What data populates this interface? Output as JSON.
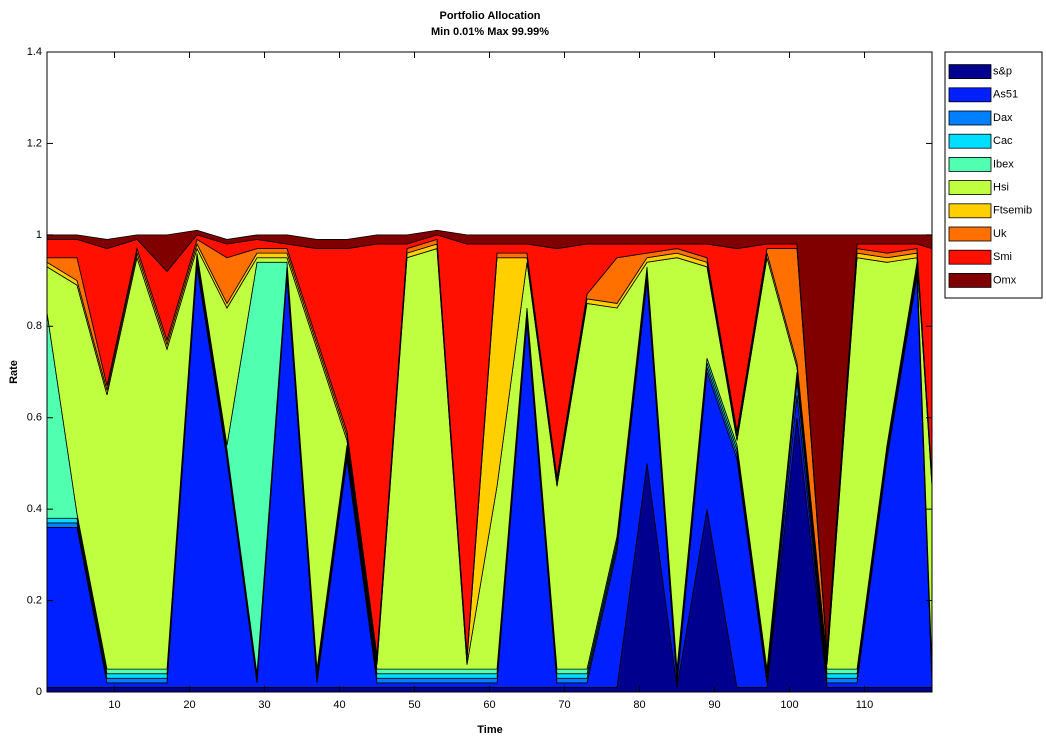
{
  "chart_data": {
    "type": "stacked_area",
    "title": "Portfolio Allocation",
    "subtitle": "Min 0.01% Max 99.99%",
    "x_label": "Time",
    "y_label": "Rate",
    "x": [
      1,
      5,
      9,
      13,
      17,
      21,
      25,
      29,
      33,
      37,
      41,
      45,
      49,
      53,
      57,
      61,
      65,
      69,
      73,
      77,
      81,
      85,
      89,
      93,
      97,
      101,
      105,
      109,
      113,
      117,
      119
    ],
    "series": [
      {
        "name": "s&p",
        "color": "#00008f",
        "values": [
          0.01,
          0.01,
          0.01,
          0.01,
          0.01,
          0.01,
          0.01,
          0.01,
          0.01,
          0.01,
          0.01,
          0.01,
          0.01,
          0.01,
          0.01,
          0.01,
          0.01,
          0.01,
          0.01,
          0.01,
          0.5,
          0.01,
          0.4,
          0.01,
          0.01,
          0.6,
          0.01,
          0.01,
          0.01,
          0.01,
          0.01
        ]
      },
      {
        "name": "As51",
        "color": "#0020ff",
        "values": [
          0.35,
          0.35,
          0.01,
          0.01,
          0.01,
          0.92,
          0.5,
          0.01,
          0.9,
          0.01,
          0.5,
          0.01,
          0.01,
          0.01,
          0.01,
          0.01,
          0.8,
          0.01,
          0.01,
          0.3,
          0.4,
          0.01,
          0.3,
          0.5,
          0.01,
          0.05,
          0.01,
          0.01,
          0.5,
          0.9,
          0.01
        ]
      },
      {
        "name": "Dax",
        "color": "#0080ff",
        "values": [
          0.01,
          0.01,
          0.01,
          0.01,
          0.01,
          0.01,
          0.01,
          0.01,
          0.01,
          0.01,
          0.01,
          0.01,
          0.01,
          0.01,
          0.01,
          0.01,
          0.01,
          0.01,
          0.01,
          0.01,
          0.01,
          0.01,
          0.01,
          0.01,
          0.01,
          0.03,
          0.01,
          0.01,
          0.01,
          0.01,
          0.01
        ]
      },
      {
        "name": "Cac",
        "color": "#00dfff",
        "values": [
          0.01,
          0.01,
          0.01,
          0.01,
          0.01,
          0.01,
          0.01,
          0.01,
          0.01,
          0.01,
          0.01,
          0.01,
          0.01,
          0.01,
          0.01,
          0.01,
          0.01,
          0.01,
          0.01,
          0.01,
          0.01,
          0.01,
          0.01,
          0.01,
          0.01,
          0.01,
          0.01,
          0.01,
          0.01,
          0.01,
          0.01
        ]
      },
      {
        "name": "Ibex",
        "color": "#50ffaf",
        "values": [
          0.45,
          0.01,
          0.01,
          0.01,
          0.01,
          0.01,
          0.01,
          0.9,
          0.01,
          0.01,
          0.01,
          0.01,
          0.01,
          0.01,
          0.01,
          0.01,
          0.01,
          0.01,
          0.01,
          0.01,
          0.01,
          0.01,
          0.01,
          0.01,
          0.01,
          0.01,
          0.01,
          0.01,
          0.01,
          0.01,
          0.01
        ]
      },
      {
        "name": "Hsi",
        "color": "#bfff40",
        "values": [
          0.1,
          0.5,
          0.6,
          0.9,
          0.7,
          0.01,
          0.3,
          0.01,
          0.01,
          0.7,
          0.01,
          0.01,
          0.9,
          0.92,
          0.01,
          0.4,
          0.1,
          0.4,
          0.8,
          0.5,
          0.01,
          0.9,
          0.2,
          0.01,
          0.9,
          0.01,
          0.01,
          0.9,
          0.4,
          0.01,
          0.4
        ]
      },
      {
        "name": "Ftsemib",
        "color": "#ffcf00",
        "values": [
          0.01,
          0.01,
          0.01,
          0.01,
          0.01,
          0.01,
          0.01,
          0.01,
          0.01,
          0.01,
          0.01,
          0.01,
          0.01,
          0.01,
          0.01,
          0.5,
          0.01,
          0.01,
          0.01,
          0.01,
          0.01,
          0.01,
          0.01,
          0.01,
          0.01,
          0.01,
          0.01,
          0.01,
          0.01,
          0.01,
          0.01
        ]
      },
      {
        "name": "Uk",
        "color": "#ff7000",
        "values": [
          0.01,
          0.05,
          0.01,
          0.01,
          0.01,
          0.01,
          0.1,
          0.01,
          0.01,
          0.01,
          0.01,
          0.01,
          0.01,
          0.01,
          0.01,
          0.01,
          0.01,
          0.01,
          0.01,
          0.1,
          0.01,
          0.01,
          0.01,
          0.01,
          0.01,
          0.25,
          0.01,
          0.01,
          0.01,
          0.01,
          0.01
        ]
      },
      {
        "name": "Smi",
        "color": "#ff1000",
        "values": [
          0.04,
          0.04,
          0.3,
          0.02,
          0.15,
          0.01,
          0.03,
          0.02,
          0.01,
          0.2,
          0.4,
          0.9,
          0.01,
          0.01,
          0.9,
          0.02,
          0.02,
          0.5,
          0.11,
          0.03,
          0.02,
          0.01,
          0.03,
          0.4,
          0.01,
          0.01,
          0.01,
          0.01,
          0.02,
          0.01,
          0.5
        ]
      },
      {
        "name": "Omx",
        "color": "#800000",
        "values": [
          0.01,
          0.01,
          0.02,
          0.01,
          0.08,
          0.01,
          0.01,
          0.01,
          0.02,
          0.02,
          0.02,
          0.02,
          0.02,
          0.01,
          0.02,
          0.02,
          0.02,
          0.03,
          0.02,
          0.02,
          0.02,
          0.02,
          0.02,
          0.03,
          0.02,
          0.02,
          0.91,
          0.02,
          0.02,
          0.02,
          0.03
        ]
      }
    ],
    "xlim": [
      1,
      119
    ],
    "xticks": [
      10,
      20,
      30,
      40,
      50,
      60,
      70,
      80,
      90,
      100,
      110
    ],
    "ylim": [
      0,
      1.4
    ],
    "yticks": [
      0,
      0.2,
      0.4,
      0.6,
      0.8,
      1,
      1.2,
      1.4
    ],
    "legend": "outside-right"
  }
}
